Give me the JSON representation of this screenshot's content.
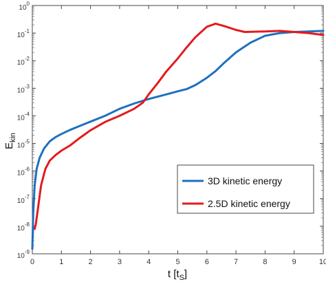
{
  "chart_data": {
    "type": "line",
    "xlabel": "t [t",
    "xlabel_sub": "S",
    "xlabel_close": "]",
    "ylabel": "E",
    "ylabel_sub": "kin",
    "xlim": [
      0,
      10
    ],
    "ylim": [
      1e-09,
      1
    ],
    "yscale": "log",
    "grid": false,
    "legend_placement": "lower-right",
    "x_ticks": [
      0,
      1,
      2,
      3,
      4,
      5,
      6,
      7,
      8,
      9,
      10
    ],
    "y_ticks": [
      {
        "value": 1.0,
        "base": "10",
        "exp": "0"
      },
      {
        "value": 0.1,
        "base": "10",
        "exp": "-1"
      },
      {
        "value": 0.01,
        "base": "10",
        "exp": "-2"
      },
      {
        "value": 0.001,
        "base": "10",
        "exp": "-3"
      },
      {
        "value": 0.0001,
        "base": "10",
        "exp": "-4"
      },
      {
        "value": 1e-05,
        "base": "10",
        "exp": "-5"
      },
      {
        "value": 1e-06,
        "base": "10",
        "exp": "-6"
      },
      {
        "value": 1e-07,
        "base": "10",
        "exp": "-7"
      },
      {
        "value": 1e-08,
        "base": "10",
        "exp": "-8"
      },
      {
        "value": 1e-09,
        "base": "10",
        "exp": "-9"
      }
    ],
    "series": [
      {
        "name": "3D kinetic energy",
        "color": "#1f6fbf",
        "x": [
          0,
          0.03,
          0.08,
          0.15,
          0.25,
          0.4,
          0.6,
          0.8,
          1.0,
          1.3,
          1.6,
          2.0,
          2.5,
          3.0,
          3.5,
          4.0,
          4.5,
          5.0,
          5.3,
          5.6,
          6.0,
          6.3,
          6.6,
          7.0,
          7.5,
          8.0,
          8.5,
          9.0,
          9.5,
          10.0
        ],
        "y": [
          1.5e-09,
          3e-08,
          3e-07,
          1.2e-06,
          3e-06,
          6.5e-06,
          1.2e-05,
          1.7e-05,
          2.2e-05,
          3.1e-05,
          4.2e-05,
          6.2e-05,
          0.0001,
          0.00018,
          0.00028,
          0.00041,
          0.00056,
          0.00078,
          0.00093,
          0.0013,
          0.0024,
          0.0042,
          0.0085,
          0.02,
          0.045,
          0.08,
          0.1,
          0.11,
          0.115,
          0.12
        ]
      },
      {
        "name": "2.5D kinetic energy",
        "color": "#e31a1c",
        "x": [
          0.08,
          0.12,
          0.2,
          0.3,
          0.45,
          0.6,
          0.8,
          1.0,
          1.3,
          1.6,
          2.0,
          2.5,
          3.0,
          3.5,
          3.8,
          4.0,
          4.3,
          4.6,
          5.0,
          5.3,
          5.6,
          6.0,
          6.3,
          6.6,
          7.0,
          7.3,
          8.0,
          8.5,
          9.0,
          9.5,
          10.0
        ],
        "y": [
          8e-09,
          1.2e-08,
          5e-08,
          3e-07,
          1.2e-06,
          2.4e-06,
          3.8e-06,
          5.5e-06,
          8.5e-06,
          1.5e-05,
          3e-05,
          6e-05,
          0.0001,
          0.00018,
          0.0003,
          0.0006,
          0.0015,
          0.004,
          0.012,
          0.03,
          0.07,
          0.17,
          0.22,
          0.18,
          0.13,
          0.11,
          0.115,
          0.12,
          0.11,
          0.1,
          0.085
        ]
      }
    ]
  }
}
